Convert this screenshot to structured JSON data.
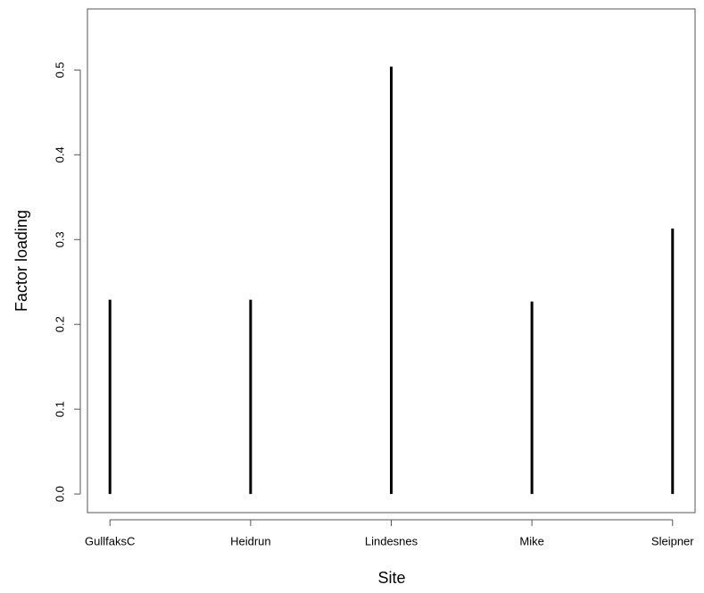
{
  "chart_data": {
    "type": "bar",
    "x_label": "Site",
    "y_label": "Factor loading",
    "categories": [
      "GullfaksC",
      "Heidrun",
      "Lindesnes",
      "Mike",
      "Sleipner"
    ],
    "values": [
      0.229,
      0.229,
      0.504,
      0.227,
      0.313
    ],
    "color": "#000000",
    "ylim": [
      -0.022,
      0.572
    ],
    "yticks": [
      {
        "value": 0,
        "label": "0.0"
      },
      0.1,
      0.2,
      0.3,
      0.4,
      0.5
    ]
  }
}
